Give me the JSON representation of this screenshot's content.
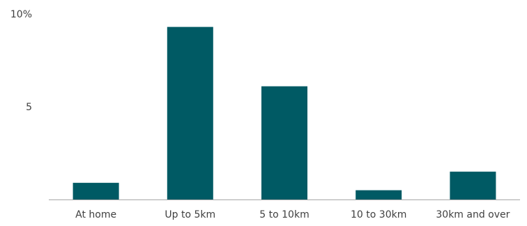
{
  "chart_data": {
    "type": "bar",
    "categories": [
      "At home",
      "Up to 5km",
      "5 to 10km",
      "10 to 30km",
      "30km and over"
    ],
    "values": [
      0.9,
      9.3,
      6.1,
      0.5,
      1.5
    ],
    "ylim": [
      0,
      10
    ],
    "yticks": [
      {
        "value": 5,
        "label": "5"
      },
      {
        "value": 10,
        "label": "10%"
      }
    ],
    "bar_color": "#005a64",
    "axis_color": "#a6a6a6",
    "grid": false,
    "legend": "none"
  }
}
